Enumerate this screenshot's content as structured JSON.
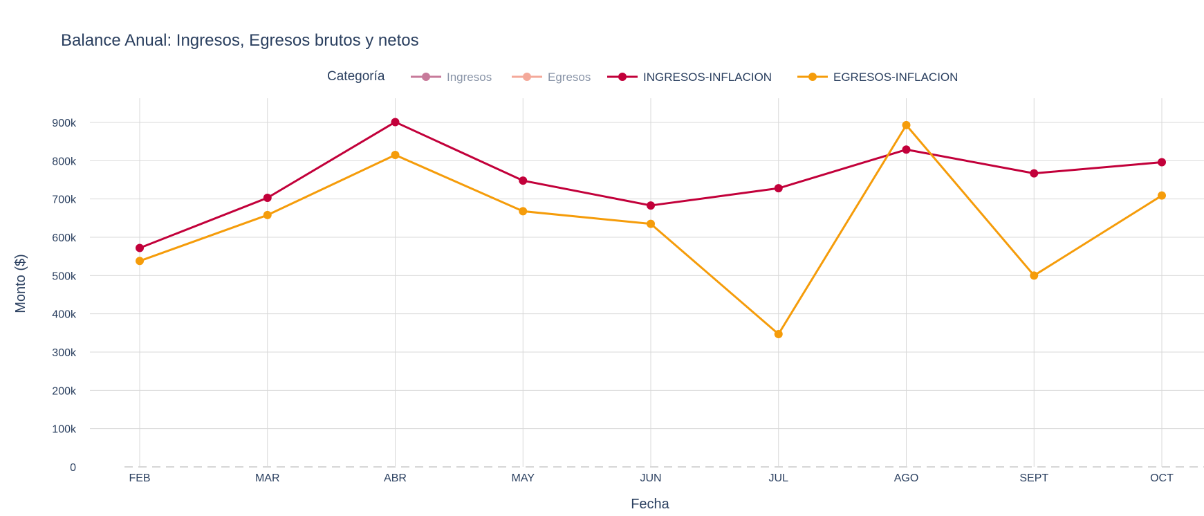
{
  "chart_data": {
    "type": "line",
    "title": "Balance Anual: Ingresos, Egresos brutos y netos",
    "xlabel": "Fecha",
    "ylabel": "Monto ($)",
    "categories": [
      "FEB",
      "MAR",
      "ABR",
      "MAY",
      "JUN",
      "JUL",
      "AGO",
      "SEPT",
      "OCT"
    ],
    "ylim": [
      0,
      960000
    ],
    "yticks": [
      0,
      100000,
      200000,
      300000,
      400000,
      500000,
      600000,
      700000,
      800000,
      900000
    ],
    "ytick_labels": [
      "0",
      "100k",
      "200k",
      "300k",
      "400k",
      "500k",
      "600k",
      "700k",
      "800k",
      "900k"
    ],
    "grid": true,
    "legend": {
      "title": "Categoría",
      "position": "top",
      "entries": [
        {
          "name": "Ingresos",
          "color": "#c77a9a",
          "hidden": true
        },
        {
          "name": "Egresos",
          "color": "#f4a99a",
          "hidden": true
        },
        {
          "name": "INGRESOS-INFLACION",
          "color": "#c2003a",
          "hidden": false
        },
        {
          "name": "EGRESOS-INFLACION",
          "color": "#f59c0a",
          "hidden": false
        }
      ]
    },
    "series": [
      {
        "name": "INGRESOS-INFLACION",
        "color": "#c2003a",
        "values": [
          572000,
          703000,
          901000,
          748000,
          683000,
          728000,
          829000,
          767000,
          796000
        ]
      },
      {
        "name": "EGRESOS-INFLACION",
        "color": "#f59c0a",
        "values": [
          538000,
          658000,
          815000,
          668000,
          635000,
          347000,
          893000,
          500000,
          709000
        ]
      }
    ]
  }
}
